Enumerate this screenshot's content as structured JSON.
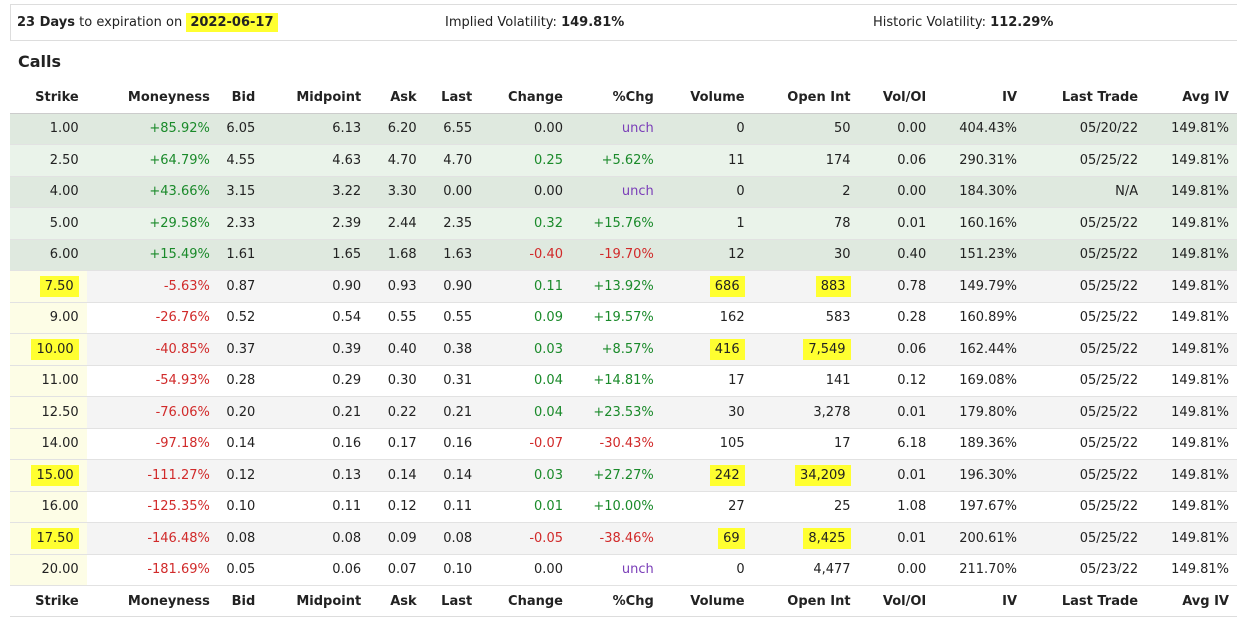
{
  "header": {
    "days": "23 Days",
    "expiration_text": "to expiration on",
    "date": "2022-06-17",
    "iv_label": "Implied Volatility:",
    "iv_value": "149.81%",
    "hv_label": "Historic Volatility:",
    "hv_value": "112.29%"
  },
  "section_title": "Calls",
  "table": {
    "columns": [
      "Strike",
      "Moneyness",
      "Bid",
      "Midpoint",
      "Ask",
      "Last",
      "Change",
      "%Chg",
      "Volume",
      "Open Int",
      "Vol/OI",
      "IV",
      "Last Trade",
      "Avg IV"
    ],
    "rows": [
      [
        "1.00",
        "+85.92%",
        "6.05",
        "6.13",
        "6.20",
        "6.55",
        "0.00",
        "unch",
        "0",
        "50",
        "0.00",
        "404.43%",
        "05/20/22",
        "149.81%"
      ],
      [
        "2.50",
        "+64.79%",
        "4.55",
        "4.63",
        "4.70",
        "4.70",
        "0.25",
        "+5.62%",
        "11",
        "174",
        "0.06",
        "290.31%",
        "05/25/22",
        "149.81%"
      ],
      [
        "4.00",
        "+43.66%",
        "3.15",
        "3.22",
        "3.30",
        "0.00",
        "0.00",
        "unch",
        "0",
        "2",
        "0.00",
        "184.30%",
        "N/A",
        "149.81%"
      ],
      [
        "5.00",
        "+29.58%",
        "2.33",
        "2.39",
        "2.44",
        "2.35",
        "0.32",
        "+15.76%",
        "1",
        "78",
        "0.01",
        "160.16%",
        "05/25/22",
        "149.81%"
      ],
      [
        "6.00",
        "+15.49%",
        "1.61",
        "1.65",
        "1.68",
        "1.63",
        "-0.40",
        "-19.70%",
        "12",
        "30",
        "0.40",
        "151.23%",
        "05/25/22",
        "149.81%"
      ],
      [
        "7.50",
        "-5.63%",
        "0.87",
        "0.90",
        "0.93",
        "0.90",
        "0.11",
        "+13.92%",
        "686",
        "883",
        "0.78",
        "149.79%",
        "05/25/22",
        "149.81%"
      ],
      [
        "9.00",
        "-26.76%",
        "0.52",
        "0.54",
        "0.55",
        "0.55",
        "0.09",
        "+19.57%",
        "162",
        "583",
        "0.28",
        "160.89%",
        "05/25/22",
        "149.81%"
      ],
      [
        "10.00",
        "-40.85%",
        "0.37",
        "0.39",
        "0.40",
        "0.38",
        "0.03",
        "+8.57%",
        "416",
        "7,549",
        "0.06",
        "162.44%",
        "05/25/22",
        "149.81%"
      ],
      [
        "11.00",
        "-54.93%",
        "0.28",
        "0.29",
        "0.30",
        "0.31",
        "0.04",
        "+14.81%",
        "17",
        "141",
        "0.12",
        "169.08%",
        "05/25/22",
        "149.81%"
      ],
      [
        "12.50",
        "-76.06%",
        "0.20",
        "0.21",
        "0.22",
        "0.21",
        "0.04",
        "+23.53%",
        "30",
        "3,278",
        "0.01",
        "179.80%",
        "05/25/22",
        "149.81%"
      ],
      [
        "14.00",
        "-97.18%",
        "0.14",
        "0.16",
        "0.17",
        "0.16",
        "-0.07",
        "-30.43%",
        "105",
        "17",
        "6.18",
        "189.36%",
        "05/25/22",
        "149.81%"
      ],
      [
        "15.00",
        "-111.27%",
        "0.12",
        "0.13",
        "0.14",
        "0.14",
        "0.03",
        "+27.27%",
        "242",
        "34,209",
        "0.01",
        "196.30%",
        "05/25/22",
        "149.81%"
      ],
      [
        "16.00",
        "-125.35%",
        "0.10",
        "0.11",
        "0.12",
        "0.11",
        "0.01",
        "+10.00%",
        "27",
        "25",
        "1.08",
        "197.67%",
        "05/25/22",
        "149.81%"
      ],
      [
        "17.50",
        "-146.48%",
        "0.08",
        "0.08",
        "0.09",
        "0.08",
        "-0.05",
        "-38.46%",
        "69",
        "8,425",
        "0.01",
        "200.61%",
        "05/25/22",
        "149.81%"
      ],
      [
        "20.00",
        "-181.69%",
        "0.05",
        "0.06",
        "0.07",
        "0.10",
        "0.00",
        "unch",
        "0",
        "4,477",
        "0.00",
        "211.70%",
        "05/23/22",
        "149.81%"
      ]
    ],
    "highlighted_cells": [
      [
        5,
        0
      ],
      [
        5,
        8
      ],
      [
        5,
        9
      ],
      [
        7,
        0
      ],
      [
        7,
        8
      ],
      [
        7,
        9
      ],
      [
        11,
        0
      ],
      [
        11,
        8
      ],
      [
        11,
        9
      ],
      [
        13,
        0
      ],
      [
        13,
        8
      ],
      [
        13,
        9
      ]
    ]
  }
}
